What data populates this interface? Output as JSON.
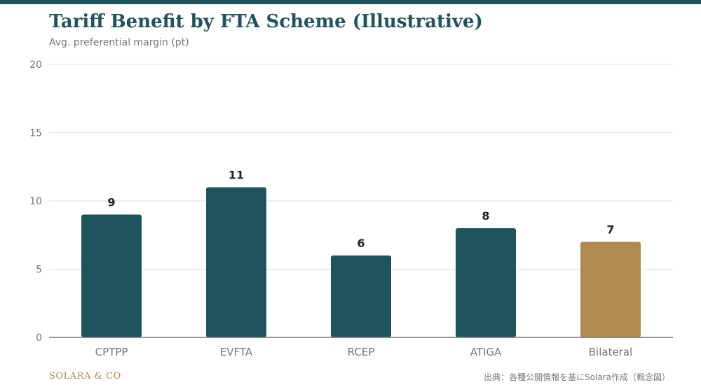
{
  "chart_data": {
    "type": "bar",
    "title": "Tariff Benefit by FTA Scheme (Illustrative)",
    "ylabel": "Avg. preferential margin (pt)",
    "xlabel": "",
    "categories": [
      "CPTPP",
      "EVFTA",
      "RCEP",
      "ATIGA",
      "Bilateral"
    ],
    "values": [
      9,
      11,
      6,
      8,
      7
    ],
    "ylim": [
      0,
      20
    ],
    "yticks": [
      "0",
      "5",
      "10",
      "15",
      "20"
    ],
    "grid": true,
    "colors": [
      "#1f545e",
      "#1f545e",
      "#1f545e",
      "#1f545e",
      "#b08a4e"
    ]
  },
  "footer": {
    "brand": "SOLARA & CO",
    "source": "出典：各種公開情報を基にSolara作成（概念図）"
  }
}
